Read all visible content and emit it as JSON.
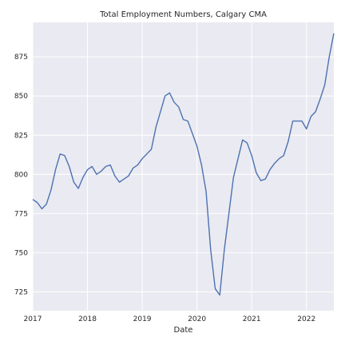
{
  "chart_data": {
    "type": "line",
    "title": "Total Employment Numbers, Calgary CMA",
    "xlabel": "Date",
    "ylabel": "",
    "x_ticks": [
      "2017",
      "2018",
      "2019",
      "2020",
      "2021",
      "2022"
    ],
    "y_ticks": [
      725,
      750,
      775,
      800,
      825,
      850,
      875
    ],
    "xlim": [
      "2017-01",
      "2022-07"
    ],
    "ylim": [
      713,
      897
    ],
    "grid": true,
    "background": "#EAEAF2",
    "line_color": "#4C72B0",
    "series": [
      {
        "x": [
          "2017-01",
          "2017-02",
          "2017-03",
          "2017-04",
          "2017-05",
          "2017-06",
          "2017-07",
          "2017-08",
          "2017-09",
          "2017-10",
          "2017-11",
          "2017-12",
          "2018-01",
          "2018-02",
          "2018-03",
          "2018-04",
          "2018-05",
          "2018-06",
          "2018-07",
          "2018-08",
          "2018-09",
          "2018-10",
          "2018-11",
          "2018-12",
          "2019-01",
          "2019-02",
          "2019-03",
          "2019-04",
          "2019-05",
          "2019-06",
          "2019-07",
          "2019-08",
          "2019-09",
          "2019-10",
          "2019-11",
          "2019-12",
          "2020-01",
          "2020-02",
          "2020-03",
          "2020-04",
          "2020-05",
          "2020-06",
          "2020-07",
          "2020-08",
          "2020-09",
          "2020-10",
          "2020-11",
          "2020-12",
          "2021-01",
          "2021-02",
          "2021-03",
          "2021-04",
          "2021-05",
          "2021-06",
          "2021-07",
          "2021-08",
          "2021-09",
          "2021-10",
          "2021-11",
          "2021-12",
          "2022-01",
          "2022-02",
          "2022-03",
          "2022-04",
          "2022-05",
          "2022-06",
          "2022-07"
        ],
        "y": [
          784,
          782,
          778,
          781,
          790,
          803,
          813,
          812,
          805,
          795,
          791,
          798,
          803,
          805,
          800,
          802,
          805,
          806,
          799,
          795,
          797,
          799,
          804,
          806,
          810,
          813,
          816,
          830,
          840,
          850,
          852,
          846,
          843,
          835,
          834,
          826,
          818,
          806,
          789,
          752,
          727,
          723,
          752,
          775,
          798,
          810,
          822,
          820,
          812,
          801,
          796,
          797,
          803,
          807,
          810,
          812,
          821,
          834,
          834,
          834,
          829,
          837,
          840,
          848,
          857,
          875,
          890
        ]
      }
    ]
  }
}
